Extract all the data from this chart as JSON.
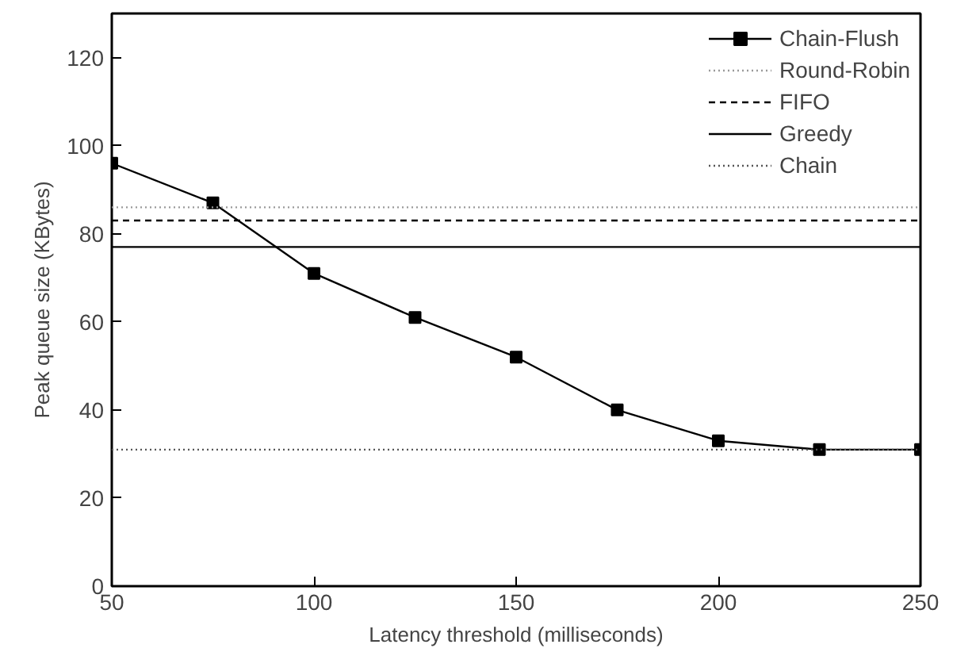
{
  "chart_data": {
    "type": "line",
    "xlabel": "Latency threshold (milliseconds)",
    "ylabel": "Peak queue size (KBytes)",
    "xlim": [
      50,
      250
    ],
    "ylim": [
      0,
      130
    ],
    "xticks": [
      50,
      100,
      150,
      200,
      250
    ],
    "yticks": [
      0,
      20,
      40,
      60,
      80,
      100,
      120
    ],
    "grid": false,
    "legend": "top right",
    "series": [
      {
        "name": "Chain-Flush",
        "color": "#000000",
        "marker": "square",
        "line_style": "solid",
        "x": [
          50,
          75,
          100,
          125,
          150,
          175,
          200,
          225,
          250
        ],
        "values": [
          96,
          87,
          71,
          61,
          52,
          40,
          33,
          31,
          31
        ]
      },
      {
        "name": "Round-Robin",
        "color": "#999999",
        "marker": "none",
        "line_style": "dotted",
        "x": [
          50,
          250
        ],
        "values": [
          86,
          86
        ]
      },
      {
        "name": "FIFO",
        "color": "#000000",
        "marker": "none",
        "line_style": "dashed",
        "x": [
          50,
          250
        ],
        "values": [
          83,
          83
        ]
      },
      {
        "name": "Greedy",
        "color": "#000000",
        "marker": "none",
        "line_style": "solid",
        "x": [
          50,
          250
        ],
        "values": [
          77,
          77
        ]
      },
      {
        "name": "Chain",
        "color": "#555555",
        "marker": "none",
        "line_style": "dotted",
        "x": [
          50,
          250
        ],
        "values": [
          31,
          31
        ]
      }
    ]
  }
}
